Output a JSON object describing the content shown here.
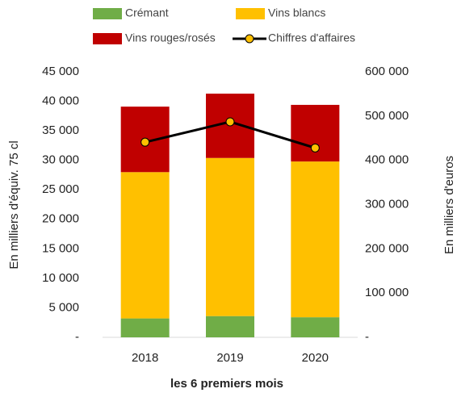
{
  "chart_data": {
    "type": "bar",
    "stacked": true,
    "categories": [
      "2018",
      "2019",
      "2020"
    ],
    "xlabel": "les 6 premiers mois",
    "ylabel": "En milliers d'équiv. 75 cl",
    "y2label": "En milliers d'euros",
    "series": [
      {
        "name": "Crémant",
        "color": "#70ad47",
        "values": [
          3200,
          3600,
          3400
        ]
      },
      {
        "name": "Vins blancs",
        "color": "#ffc000",
        "values": [
          24800,
          26800,
          26400
        ]
      },
      {
        "name": "Vins rouges/rosés",
        "color": "#c00000",
        "values": [
          11100,
          10900,
          9600
        ]
      },
      {
        "name": "Chiffres d'affaires",
        "type": "line",
        "axis": "y2",
        "color": "#000000",
        "marker_color": "#ffc000",
        "values": [
          441000,
          487000,
          428000
        ]
      }
    ],
    "ylim": [
      0,
      45000
    ],
    "yticks": [
      {
        "value": 0,
        "label": "-"
      },
      {
        "value": 5000,
        "label": "5 000"
      },
      {
        "value": 10000,
        "label": "10 000"
      },
      {
        "value": 15000,
        "label": "15 000"
      },
      {
        "value": 20000,
        "label": "20 000"
      },
      {
        "value": 25000,
        "label": "25 000"
      },
      {
        "value": 30000,
        "label": "30 000"
      },
      {
        "value": 35000,
        "label": "35 000"
      },
      {
        "value": 40000,
        "label": "40 000"
      },
      {
        "value": 45000,
        "label": "45 000"
      }
    ],
    "y2lim": [
      0,
      600000
    ],
    "y2ticks": [
      {
        "value": 0,
        "label": "-"
      },
      {
        "value": 100000,
        "label": "100 000"
      },
      {
        "value": 200000,
        "label": "200 000"
      },
      {
        "value": 300000,
        "label": "300 000"
      },
      {
        "value": 400000,
        "label": "400 000"
      },
      {
        "value": 500000,
        "label": "500 000"
      },
      {
        "value": 600000,
        "label": "600 000"
      }
    ],
    "grid": false
  }
}
